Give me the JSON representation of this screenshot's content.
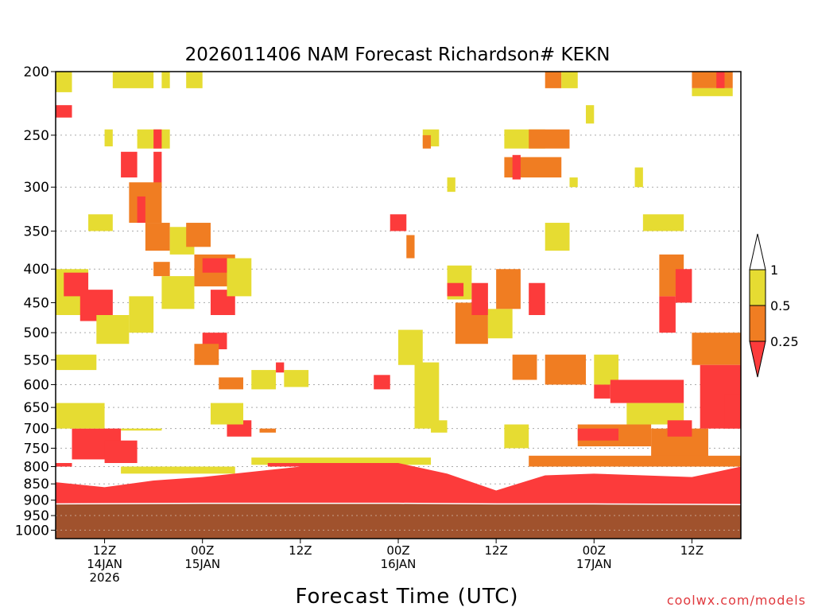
{
  "title": "2026011406 NAM Forecast Richardson# KEKN",
  "xlabel": "Forecast Time (UTC)",
  "credit": "coolwx.com/models",
  "colors": {
    "ri_lt_025": "#fc3b3b",
    "ri_025_05": "#f07d22",
    "ri_05_1": "#e6dc32",
    "ground": "#a0522d",
    "gridline": "#aaaaaa"
  },
  "chart_data": {
    "type": "heatmap",
    "title": "2026011406 NAM Forecast Richardson# KEKN",
    "xlabel": "Forecast Time (UTC)",
    "ylabel": "",
    "y_scale": "log",
    "ylim": [
      1000,
      200
    ],
    "x_start": "2026-01-14T06:00Z",
    "x_end": "2026-01-17T18:00Z",
    "y_ticks": [
      200,
      250,
      300,
      350,
      400,
      450,
      500,
      550,
      600,
      650,
      700,
      750,
      800,
      850,
      900,
      950,
      1000
    ],
    "x_ticks": [
      {
        "time": "2026-01-14T12:00Z",
        "lines": [
          "12Z",
          "14JAN",
          "2026"
        ]
      },
      {
        "time": "2026-01-15T00:00Z",
        "lines": [
          "00Z",
          "15JAN"
        ]
      },
      {
        "time": "2026-01-15T12:00Z",
        "lines": [
          "12Z"
        ]
      },
      {
        "time": "2026-01-16T00:00Z",
        "lines": [
          "00Z",
          "16JAN"
        ]
      },
      {
        "time": "2026-01-16T12:00Z",
        "lines": [
          "12Z"
        ]
      },
      {
        "time": "2026-01-17T00:00Z",
        "lines": [
          "00Z",
          "17JAN"
        ]
      },
      {
        "time": "2026-01-17T12:00Z",
        "lines": [
          "12Z"
        ]
      }
    ],
    "legend": {
      "placement": "right",
      "levels": [
        "0.25",
        "0.5",
        "1"
      ],
      "bins": [
        "< 0.25",
        "0.25 - 0.5",
        "0.5 - 1"
      ]
    },
    "grid": true,
    "surface_pressure": [
      {
        "time": "2026-01-14T06:00Z",
        "p": 912
      },
      {
        "time": "2026-01-15T00:00Z",
        "p": 910
      },
      {
        "time": "2026-01-16T00:00Z",
        "p": 910
      },
      {
        "time": "2026-01-16T12:00Z",
        "p": 912
      },
      {
        "time": "2026-01-17T00:00Z",
        "p": 912
      },
      {
        "time": "2026-01-17T18:00Z",
        "p": 914
      }
    ],
    "boundary_layer_top": [
      {
        "time": "2026-01-14T06:00Z",
        "p": 845
      },
      {
        "time": "2026-01-14T12:00Z",
        "p": 860
      },
      {
        "time": "2026-01-14T18:00Z",
        "p": 840
      },
      {
        "time": "2026-01-15T00:00Z",
        "p": 830
      },
      {
        "time": "2026-01-15T12:00Z",
        "p": 800
      },
      {
        "time": "2026-01-16T00:00Z",
        "p": 790
      },
      {
        "time": "2026-01-16T06:00Z",
        "p": 820
      },
      {
        "time": "2026-01-16T12:00Z",
        "p": 870
      },
      {
        "time": "2026-01-16T18:00Z",
        "p": 825
      },
      {
        "time": "2026-01-17T00:00Z",
        "p": 820
      },
      {
        "time": "2026-01-17T12:00Z",
        "p": 830
      },
      {
        "time": "2026-01-17T18:00Z",
        "p": 800
      }
    ],
    "cells": [
      {
        "t0": "2026-01-14T06:00Z",
        "t1": "2026-01-14T08:00Z",
        "p_top": 200,
        "p_bot": 215,
        "ri": "0.5-1"
      },
      {
        "t0": "2026-01-14T06:00Z",
        "t1": "2026-01-14T08:00Z",
        "p_top": 225,
        "p_bot": 235,
        "ri": "<0.25"
      },
      {
        "t0": "2026-01-14T13:00Z",
        "t1": "2026-01-14T18:00Z",
        "p_top": 200,
        "p_bot": 212,
        "ri": "0.5-1"
      },
      {
        "t0": "2026-01-14T19:00Z",
        "t1": "2026-01-14T20:00Z",
        "p_top": 200,
        "p_bot": 212,
        "ri": "0.5-1"
      },
      {
        "t0": "2026-01-14T22:00Z",
        "t1": "2026-01-15T00:00Z",
        "p_top": 200,
        "p_bot": 212,
        "ri": "0.5-1"
      },
      {
        "t0": "2026-01-14T12:00Z",
        "t1": "2026-01-14T13:00Z",
        "p_top": 245,
        "p_bot": 260,
        "ri": "0.5-1"
      },
      {
        "t0": "2026-01-14T16:00Z",
        "t1": "2026-01-14T20:00Z",
        "p_top": 245,
        "p_bot": 262,
        "ri": "0.5-1"
      },
      {
        "t0": "2026-01-14T18:00Z",
        "t1": "2026-01-14T19:00Z",
        "p_top": 245,
        "p_bot": 262,
        "ri": "<0.25"
      },
      {
        "t0": "2026-01-14T14:00Z",
        "t1": "2026-01-14T16:00Z",
        "p_top": 265,
        "p_bot": 290,
        "ri": "<0.25"
      },
      {
        "t0": "2026-01-14T18:00Z",
        "t1": "2026-01-14T19:00Z",
        "p_top": 265,
        "p_bot": 300,
        "ri": "<0.25"
      },
      {
        "t0": "2026-01-14T15:00Z",
        "t1": "2026-01-14T19:00Z",
        "p_top": 295,
        "p_bot": 340,
        "ri": "0.25-0.5"
      },
      {
        "t0": "2026-01-14T16:00Z",
        "t1": "2026-01-14T17:00Z",
        "p_top": 310,
        "p_bot": 340,
        "ri": "<0.25"
      },
      {
        "t0": "2026-01-14T10:00Z",
        "t1": "2026-01-14T13:00Z",
        "p_top": 330,
        "p_bot": 350,
        "ri": "0.5-1"
      },
      {
        "t0": "2026-01-14T17:00Z",
        "t1": "2026-01-14T20:00Z",
        "p_top": 340,
        "p_bot": 375,
        "ri": "0.25-0.5"
      },
      {
        "t0": "2026-01-14T18:00Z",
        "t1": "2026-01-14T20:00Z",
        "p_top": 390,
        "p_bot": 410,
        "ri": "0.25-0.5"
      },
      {
        "t0": "2026-01-14T20:00Z",
        "t1": "2026-01-14T23:00Z",
        "p_top": 345,
        "p_bot": 380,
        "ri": "0.5-1"
      },
      {
        "t0": "2026-01-14T22:00Z",
        "t1": "2026-01-15T01:00Z",
        "p_top": 340,
        "p_bot": 370,
        "ri": "0.25-0.5"
      },
      {
        "t0": "2026-01-14T23:00Z",
        "t1": "2026-01-15T04:00Z",
        "p_top": 380,
        "p_bot": 425,
        "ri": "0.25-0.5"
      },
      {
        "t0": "2026-01-15T00:00Z",
        "t1": "2026-01-15T03:00Z",
        "p_top": 385,
        "p_bot": 405,
        "ri": "<0.25"
      },
      {
        "t0": "2026-01-14T19:00Z",
        "t1": "2026-01-14T23:00Z",
        "p_top": 410,
        "p_bot": 460,
        "ri": "0.5-1"
      },
      {
        "t0": "2026-01-15T01:00Z",
        "t1": "2026-01-15T04:00Z",
        "p_top": 430,
        "p_bot": 470,
        "ri": "<0.25"
      },
      {
        "t0": "2026-01-15T03:00Z",
        "t1": "2026-01-15T06:00Z",
        "p_top": 385,
        "p_bot": 440,
        "ri": "0.5-1"
      },
      {
        "t0": "2026-01-14T06:00Z",
        "t1": "2026-01-14T10:00Z",
        "p_top": 400,
        "p_bot": 470,
        "ri": "0.5-1"
      },
      {
        "t0": "2026-01-14T07:00Z",
        "t1": "2026-01-14T10:00Z",
        "p_top": 405,
        "p_bot": 440,
        "ri": "<0.25"
      },
      {
        "t0": "2026-01-14T09:00Z",
        "t1": "2026-01-14T13:00Z",
        "p_top": 430,
        "p_bot": 480,
        "ri": "<0.25"
      },
      {
        "t0": "2026-01-14T11:00Z",
        "t1": "2026-01-14T15:00Z",
        "p_top": 470,
        "p_bot": 520,
        "ri": "0.5-1"
      },
      {
        "t0": "2026-01-14T15:00Z",
        "t1": "2026-01-14T18:00Z",
        "p_top": 440,
        "p_bot": 500,
        "ri": "0.5-1"
      },
      {
        "t0": "2026-01-15T00:00Z",
        "t1": "2026-01-15T03:00Z",
        "p_top": 500,
        "p_bot": 530,
        "ri": "<0.25"
      },
      {
        "t0": "2026-01-14T23:00Z",
        "t1": "2026-01-15T02:00Z",
        "p_top": 520,
        "p_bot": 560,
        "ri": "0.25-0.5"
      },
      {
        "t0": "2026-01-14T06:00Z",
        "t1": "2026-01-14T11:00Z",
        "p_top": 540,
        "p_bot": 570,
        "ri": "0.5-1"
      },
      {
        "t0": "2026-01-15T02:00Z",
        "t1": "2026-01-15T05:00Z",
        "p_top": 585,
        "p_bot": 610,
        "ri": "0.25-0.5"
      },
      {
        "t0": "2026-01-15T06:00Z",
        "t1": "2026-01-15T09:00Z",
        "p_top": 570,
        "p_bot": 610,
        "ri": "0.5-1"
      },
      {
        "t0": "2026-01-15T09:00Z",
        "t1": "2026-01-15T10:00Z",
        "p_top": 555,
        "p_bot": 575,
        "ri": "<0.25"
      },
      {
        "t0": "2026-01-15T10:00Z",
        "t1": "2026-01-15T13:00Z",
        "p_top": 570,
        "p_bot": 605,
        "ri": "0.5-1"
      },
      {
        "t0": "2026-01-15T21:00Z",
        "t1": "2026-01-15T23:00Z",
        "p_top": 580,
        "p_bot": 610,
        "ri": "<0.25"
      },
      {
        "t0": "2026-01-16T00:00Z",
        "t1": "2026-01-16T03:00Z",
        "p_top": 495,
        "p_bot": 560,
        "ri": "0.5-1"
      },
      {
        "t0": "2026-01-16T02:00Z",
        "t1": "2026-01-16T05:00Z",
        "p_top": 555,
        "p_bot": 700,
        "ri": "0.5-1"
      },
      {
        "t0": "2026-01-16T04:00Z",
        "t1": "2026-01-16T06:00Z",
        "p_top": 680,
        "p_bot": 710,
        "ri": "0.5-1"
      },
      {
        "t0": "2026-01-15T23:00Z",
        "t1": "2026-01-16T01:00Z",
        "p_top": 330,
        "p_bot": 350,
        "ri": "<0.25"
      },
      {
        "t0": "2026-01-16T01:00Z",
        "t1": "2026-01-16T02:00Z",
        "p_top": 355,
        "p_bot": 385,
        "ri": "0.25-0.5"
      },
      {
        "t0": "2026-01-16T03:00Z",
        "t1": "2026-01-16T05:00Z",
        "p_top": 245,
        "p_bot": 260,
        "ri": "0.5-1"
      },
      {
        "t0": "2026-01-16T03:00Z",
        "t1": "2026-01-16T04:00Z",
        "p_top": 250,
        "p_bot": 262,
        "ri": "0.25-0.5"
      },
      {
        "t0": "2026-01-16T06:00Z",
        "t1": "2026-01-16T07:00Z",
        "p_top": 290,
        "p_bot": 305,
        "ri": "0.5-1"
      },
      {
        "t0": "2026-01-16T06:00Z",
        "t1": "2026-01-16T09:00Z",
        "p_top": 395,
        "p_bot": 445,
        "ri": "0.5-1"
      },
      {
        "t0": "2026-01-16T06:00Z",
        "t1": "2026-01-16T08:00Z",
        "p_top": 420,
        "p_bot": 440,
        "ri": "<0.25"
      },
      {
        "t0": "2026-01-16T07:00Z",
        "t1": "2026-01-16T11:00Z",
        "p_top": 450,
        "p_bot": 520,
        "ri": "0.25-0.5"
      },
      {
        "t0": "2026-01-16T09:00Z",
        "t1": "2026-01-16T11:00Z",
        "p_top": 420,
        "p_bot": 470,
        "ri": "<0.25"
      },
      {
        "t0": "2026-01-16T11:00Z",
        "t1": "2026-01-16T14:00Z",
        "p_top": 460,
        "p_bot": 510,
        "ri": "0.5-1"
      },
      {
        "t0": "2026-01-16T12:00Z",
        "t1": "2026-01-16T15:00Z",
        "p_top": 400,
        "p_bot": 460,
        "ri": "0.25-0.5"
      },
      {
        "t0": "2026-01-16T14:00Z",
        "t1": "2026-01-16T17:00Z",
        "p_top": 540,
        "p_bot": 590,
        "ri": "0.25-0.5"
      },
      {
        "t0": "2026-01-16T16:00Z",
        "t1": "2026-01-16T18:00Z",
        "p_top": 420,
        "p_bot": 470,
        "ri": "<0.25"
      },
      {
        "t0": "2026-01-16T13:00Z",
        "t1": "2026-01-16T18:00Z",
        "p_top": 245,
        "p_bot": 262,
        "ri": "0.5-1"
      },
      {
        "t0": "2026-01-16T16:00Z",
        "t1": "2026-01-16T21:00Z",
        "p_top": 245,
        "p_bot": 262,
        "ri": "0.25-0.5"
      },
      {
        "t0": "2026-01-16T13:00Z",
        "t1": "2026-01-16T20:00Z",
        "p_top": 270,
        "p_bot": 290,
        "ri": "0.25-0.5"
      },
      {
        "t0": "2026-01-16T14:00Z",
        "t1": "2026-01-16T15:00Z",
        "p_top": 268,
        "p_bot": 292,
        "ri": "<0.25"
      },
      {
        "t0": "2026-01-16T21:00Z",
        "t1": "2026-01-16T22:00Z",
        "p_top": 290,
        "p_bot": 300,
        "ri": "0.5-1"
      },
      {
        "t0": "2026-01-16T18:00Z",
        "t1": "2026-01-16T21:00Z",
        "p_top": 340,
        "p_bot": 375,
        "ri": "0.5-1"
      },
      {
        "t0": "2026-01-16T18:00Z",
        "t1": "2026-01-16T23:00Z",
        "p_top": 540,
        "p_bot": 600,
        "ri": "0.25-0.5"
      },
      {
        "t0": "2026-01-17T00:00Z",
        "t1": "2026-01-17T03:00Z",
        "p_top": 540,
        "p_bot": 600,
        "ri": "0.5-1"
      },
      {
        "t0": "2026-01-17T00:00Z",
        "t1": "2026-01-17T02:00Z",
        "p_top": 600,
        "p_bot": 630,
        "ri": "<0.25"
      },
      {
        "t0": "2026-01-17T02:00Z",
        "t1": "2026-01-17T11:00Z",
        "p_top": 590,
        "p_bot": 640,
        "ri": "<0.25"
      },
      {
        "t0": "2026-01-17T04:00Z",
        "t1": "2026-01-17T11:00Z",
        "p_top": 640,
        "p_bot": 690,
        "ri": "0.5-1"
      },
      {
        "t0": "2026-01-16T22:00Z",
        "t1": "2026-01-17T07:00Z",
        "p_top": 690,
        "p_bot": 745,
        "ri": "0.25-0.5"
      },
      {
        "t0": "2026-01-16T22:00Z",
        "t1": "2026-01-17T03:00Z",
        "p_top": 700,
        "p_bot": 730,
        "ri": "<0.25"
      },
      {
        "t0": "2026-01-17T07:00Z",
        "t1": "2026-01-17T14:00Z",
        "p_top": 700,
        "p_bot": 780,
        "ri": "0.25-0.5"
      },
      {
        "t0": "2026-01-17T09:00Z",
        "t1": "2026-01-17T12:00Z",
        "p_top": 680,
        "p_bot": 720,
        "ri": "<0.25"
      },
      {
        "t0": "2026-01-17T12:00Z",
        "t1": "2026-01-17T18:00Z",
        "p_top": 500,
        "p_bot": 560,
        "ri": "0.25-0.5"
      },
      {
        "t0": "2026-01-17T13:00Z",
        "t1": "2026-01-17T18:00Z",
        "p_top": 560,
        "p_bot": 700,
        "ri": "<0.25"
      },
      {
        "t0": "2026-01-17T16:00Z",
        "t1": "2026-01-17T18:00Z",
        "p_top": 620,
        "p_bot": 700,
        "ri": "<0.25"
      },
      {
        "t0": "2026-01-17T08:00Z",
        "t1": "2026-01-17T10:00Z",
        "p_top": 440,
        "p_bot": 500,
        "ri": "<0.25"
      },
      {
        "t0": "2026-01-17T08:00Z",
        "t1": "2026-01-17T11:00Z",
        "p_top": 380,
        "p_bot": 440,
        "ri": "0.25-0.5"
      },
      {
        "t0": "2026-01-17T10:00Z",
        "t1": "2026-01-17T12:00Z",
        "p_top": 400,
        "p_bot": 450,
        "ri": "<0.25"
      },
      {
        "t0": "2026-01-17T06:00Z",
        "t1": "2026-01-17T11:00Z",
        "p_top": 330,
        "p_bot": 350,
        "ri": "0.5-1"
      },
      {
        "t0": "2026-01-17T12:00Z",
        "t1": "2026-01-17T17:00Z",
        "p_top": 200,
        "p_bot": 212,
        "ri": "0.25-0.5"
      },
      {
        "t0": "2026-01-17T15:00Z",
        "t1": "2026-01-17T16:00Z",
        "p_top": 200,
        "p_bot": 212,
        "ri": "<0.25"
      },
      {
        "t0": "2026-01-17T12:00Z",
        "t1": "2026-01-17T17:00Z",
        "p_top": 212,
        "p_bot": 218,
        "ri": "0.5-1"
      },
      {
        "t0": "2026-01-16T18:00Z",
        "t1": "2026-01-16T20:00Z",
        "p_top": 200,
        "p_bot": 212,
        "ri": "0.25-0.5"
      },
      {
        "t0": "2026-01-16T20:00Z",
        "t1": "2026-01-16T22:00Z",
        "p_top": 200,
        "p_bot": 212,
        "ri": "0.5-1"
      },
      {
        "t0": "2026-01-16T23:00Z",
        "t1": "2026-01-17T00:00Z",
        "p_top": 225,
        "p_bot": 240,
        "ri": "0.5-1"
      },
      {
        "t0": "2026-01-17T05:00Z",
        "t1": "2026-01-17T06:00Z",
        "p_top": 280,
        "p_bot": 300,
        "ri": "0.5-1"
      },
      {
        "t0": "2026-01-14T14:00Z",
        "t1": "2026-01-14T19:00Z",
        "p_top": 700,
        "p_bot": 705,
        "ri": "0.5-1"
      },
      {
        "t0": "2026-01-14T08:00Z",
        "t1": "2026-01-14T14:00Z",
        "p_top": 700,
        "p_bot": 780,
        "ri": "<0.25"
      },
      {
        "t0": "2026-01-14T12:00Z",
        "t1": "2026-01-14T16:00Z",
        "p_top": 730,
        "p_bot": 790,
        "ri": "<0.25"
      },
      {
        "t0": "2026-01-14T06:00Z",
        "t1": "2026-01-14T12:00Z",
        "p_top": 640,
        "p_bot": 700,
        "ri": "0.5-1"
      },
      {
        "t0": "2026-01-15T03:00Z",
        "t1": "2026-01-15T06:00Z",
        "p_top": 680,
        "p_bot": 720,
        "ri": "<0.25"
      },
      {
        "t0": "2026-01-15T01:00Z",
        "t1": "2026-01-15T05:00Z",
        "p_top": 640,
        "p_bot": 690,
        "ri": "0.5-1"
      },
      {
        "t0": "2026-01-15T07:00Z",
        "t1": "2026-01-15T09:00Z",
        "p_top": 700,
        "p_bot": 710,
        "ri": "0.25-0.5"
      },
      {
        "t0": "2026-01-16T13:00Z",
        "t1": "2026-01-16T16:00Z",
        "p_top": 690,
        "p_bot": 750,
        "ri": "0.5-1"
      },
      {
        "t0": "2026-01-14T06:00Z",
        "t1": "2026-01-14T08:00Z",
        "p_top": 790,
        "p_bot": 800,
        "ri": "<0.25"
      },
      {
        "t0": "2026-01-14T14:00Z",
        "t1": "2026-01-15T04:00Z",
        "p_top": 800,
        "p_bot": 820,
        "ri": "0.5-1"
      },
      {
        "t0": "2026-01-15T06:00Z",
        "t1": "2026-01-16T04:00Z",
        "p_top": 775,
        "p_bot": 795,
        "ri": "0.5-1"
      },
      {
        "t0": "2026-01-16T16:00Z",
        "t1": "2026-01-17T18:00Z",
        "p_top": 770,
        "p_bot": 800,
        "ri": "0.25-0.5"
      },
      {
        "t0": "2026-01-15T08:00Z",
        "t1": "2026-01-16T00:00Z",
        "p_top": 790,
        "p_bot": 800,
        "ri": "<0.25"
      }
    ]
  }
}
